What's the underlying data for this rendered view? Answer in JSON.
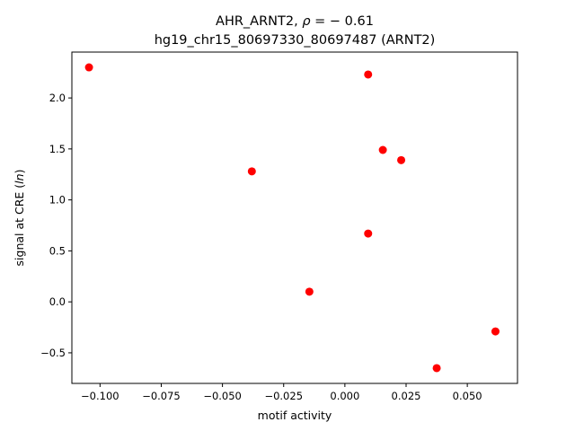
{
  "chart_data": {
    "type": "scatter",
    "title": "AHR_ARNT2, ρ = − 0.61",
    "subtitle": "hg19_chr15_80697330_80697487 (ARNT2)",
    "xlabel": "motif activity",
    "ylabel": "signal at CRE (ln)",
    "xlim": [
      -0.1115,
      0.0705
    ],
    "ylim": [
      -0.8,
      2.45
    ],
    "xticks": [
      -0.1,
      -0.075,
      -0.05,
      -0.025,
      0.0,
      0.025,
      0.05
    ],
    "xtick_labels": [
      "−0.100",
      "−0.075",
      "−0.050",
      "−0.025",
      "0.000",
      "0.025",
      "0.050"
    ],
    "yticks": [
      -0.5,
      0.0,
      0.5,
      1.0,
      1.5,
      2.0
    ],
    "ytick_labels": [
      "−0.5",
      "0.0",
      "0.5",
      "1.0",
      "1.5",
      "2.0"
    ],
    "grid": false,
    "point_color": "#ff0000",
    "points": [
      {
        "x": -0.1045,
        "y": 2.3
      },
      {
        "x": 0.0095,
        "y": 2.23
      },
      {
        "x": 0.0155,
        "y": 1.49
      },
      {
        "x": 0.023,
        "y": 1.39
      },
      {
        "x": -0.038,
        "y": 1.28
      },
      {
        "x": 0.0095,
        "y": 0.67
      },
      {
        "x": -0.0145,
        "y": 0.1
      },
      {
        "x": 0.0615,
        "y": -0.29
      },
      {
        "x": 0.0375,
        "y": -0.65
      }
    ]
  }
}
